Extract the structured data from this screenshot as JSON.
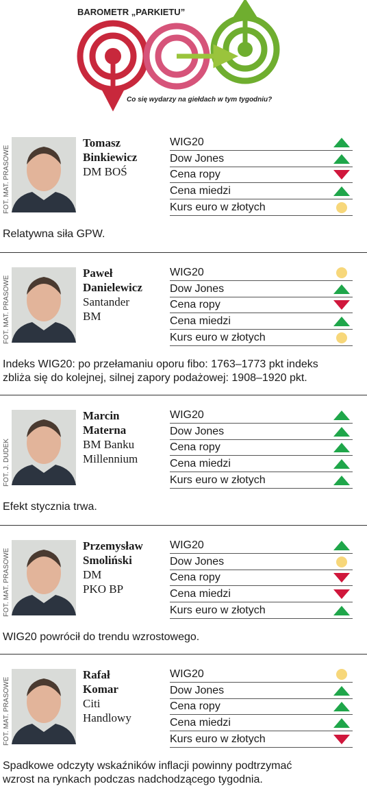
{
  "header": {
    "title": "BAROMETR „PARKIETU”",
    "subtitle": "Co się wydarzy na giełdach w tym tygodniu?"
  },
  "entries": [
    {
      "credit": "FOT. MAT. PRASOWE",
      "name": [
        "Tomasz",
        "Binkiewicz"
      ],
      "affiliation": [
        "DM BOŚ"
      ],
      "indicators": [
        "WIG20",
        "Dow Jones",
        "Cena ropy",
        "Cena miedzi",
        "Kurs euro w złotych"
      ],
      "signals": [
        "up",
        "up",
        "down",
        "up",
        "neutral"
      ],
      "comment": [
        "Relatywna siła GPW."
      ]
    },
    {
      "credit": "FOT. MAT. PRASOWE",
      "name": [
        "Paweł",
        "Danielewicz"
      ],
      "affiliation": [
        "Santander",
        "BM"
      ],
      "indicators": [
        "WIG20",
        "Dow Jones",
        "Cena ropy",
        "Cena miedzi",
        "Kurs euro w złotych"
      ],
      "signals": [
        "neutral",
        "up",
        "down",
        "up",
        "neutral"
      ],
      "comment": [
        "Indeks WIG20: po przełamaniu oporu fibo: 1763–1773 pkt indeks",
        "zbliża się do kolejnej, silnej zapory podażowej: 1908–1920 pkt."
      ]
    },
    {
      "credit": "FOT. J. DUDEK",
      "name": [
        "Marcin",
        "Materna"
      ],
      "affiliation": [
        "BM Banku",
        "Millennium"
      ],
      "indicators": [
        "WIG20",
        "Dow Jones",
        "Cena ropy",
        "Cena miedzi",
        "Kurs euro w złotych"
      ],
      "signals": [
        "up",
        "up",
        "up",
        "up",
        "up"
      ],
      "comment": [
        "Efekt stycznia trwa."
      ]
    },
    {
      "credit": "FOT. MAT. PRASOWE",
      "name": [
        "Przemysław",
        "Smoliński"
      ],
      "affiliation": [
        "DM",
        "PKO BP"
      ],
      "indicators": [
        "WIG20",
        "Dow Jones",
        "Cena ropy",
        "Cena miedzi",
        "Kurs euro w złotych"
      ],
      "signals": [
        "up",
        "neutral",
        "down",
        "down",
        "up"
      ],
      "comment": [
        "WIG20 powrócił do trendu wzrostowego."
      ]
    },
    {
      "credit": "FOT. MAT. PRASOWE",
      "name": [
        "Rafał",
        "Komar"
      ],
      "affiliation": [
        "Citi",
        "Handlowy"
      ],
      "indicators": [
        "WIG20",
        "Dow Jones",
        "Cena ropy",
        "Cena miedzi",
        "Kurs euro w złotych"
      ],
      "signals": [
        "neutral",
        "up",
        "up",
        "up",
        "down"
      ],
      "comment": [
        "Spadkowe odczyty wskaźników inflacji powinny podtrzymać",
        "wzrost na rynkach podczas nadchodzącego tygodnia."
      ]
    }
  ]
}
